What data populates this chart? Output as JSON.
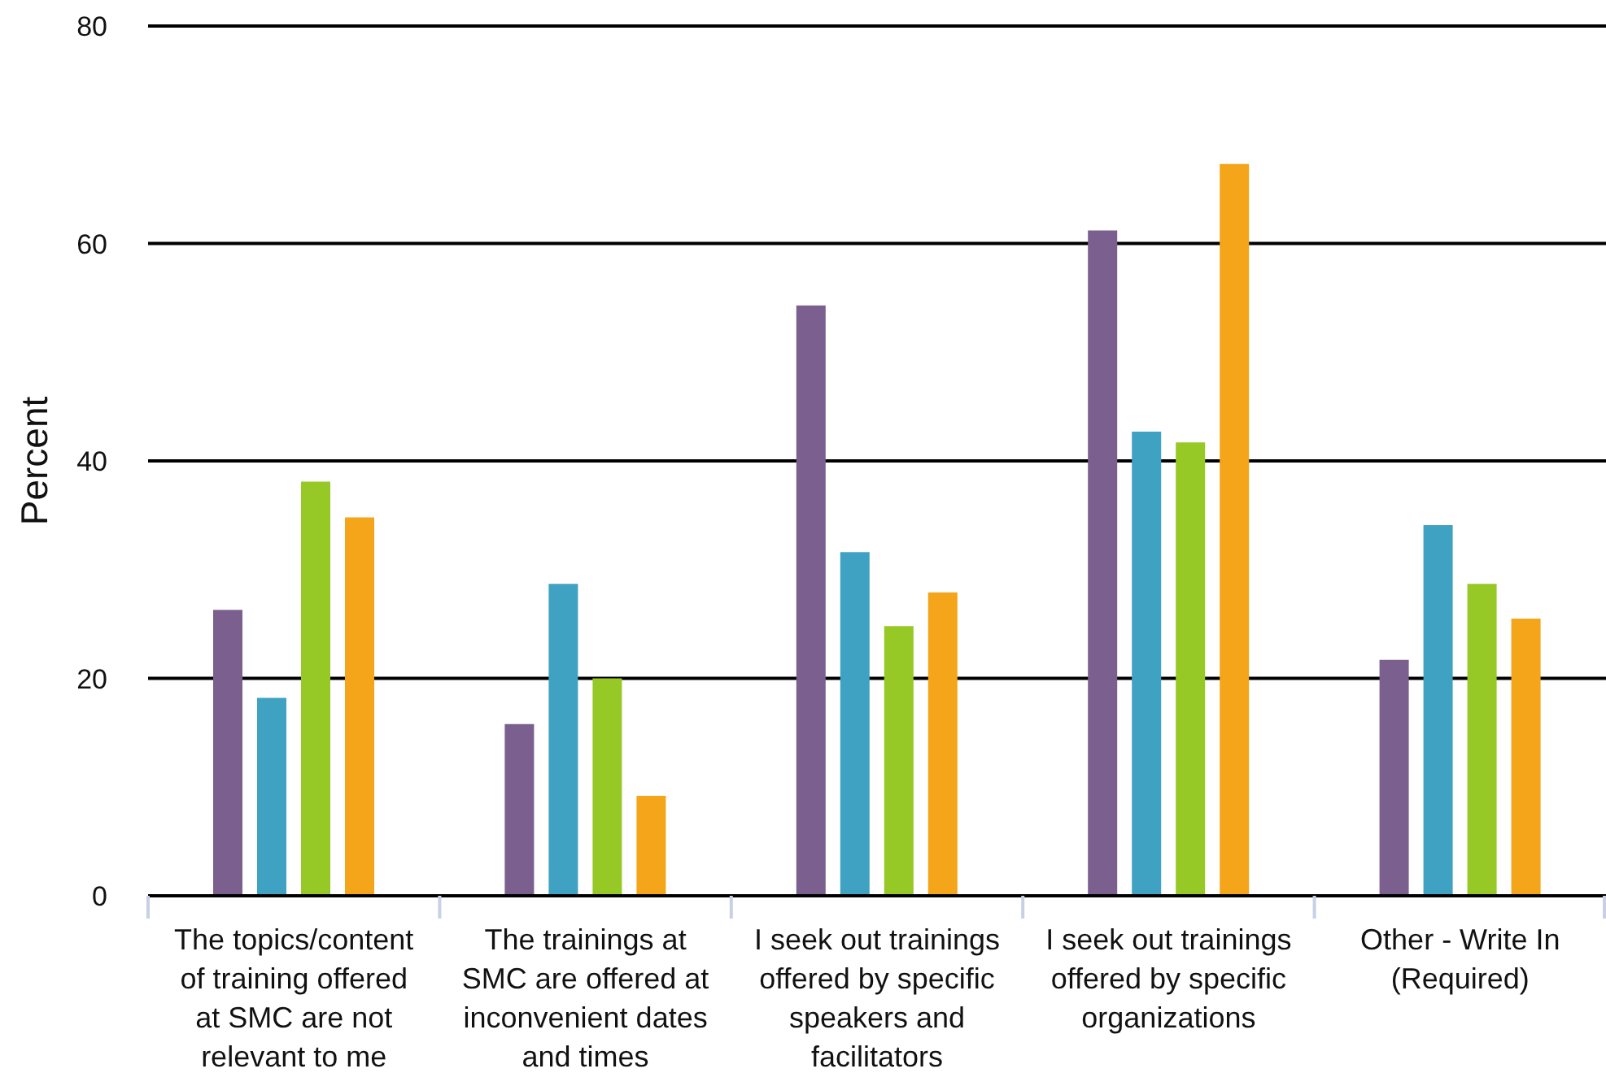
{
  "chart_data": {
    "type": "bar",
    "ylabel": "Percent",
    "categories": [
      "The topics/content of training offered at SMC are not relevant to me",
      "The trainings at SMC are offered at inconvenient dates and times",
      "I seek out trainings offered by specific speakers and facilitators",
      "I seek out trainings offered by specific organizations",
      "Other - Write In (Required)"
    ],
    "series": [
      {
        "color": "#7b5f8f",
        "values": [
          26.3,
          15.8,
          54.3,
          61.2,
          21.7
        ]
      },
      {
        "color": "#40a2c2",
        "values": [
          18.2,
          28.7,
          31.6,
          42.7,
          34.1
        ]
      },
      {
        "color": "#96c826",
        "values": [
          38.1,
          20.0,
          24.8,
          41.7,
          28.7
        ]
      },
      {
        "color": "#f4a51a",
        "values": [
          34.8,
          9.2,
          27.9,
          67.3,
          25.5
        ]
      }
    ],
    "ylim": [
      0,
      80
    ],
    "yticks": [
      0,
      20,
      40,
      60,
      80
    ],
    "grid": "y"
  }
}
